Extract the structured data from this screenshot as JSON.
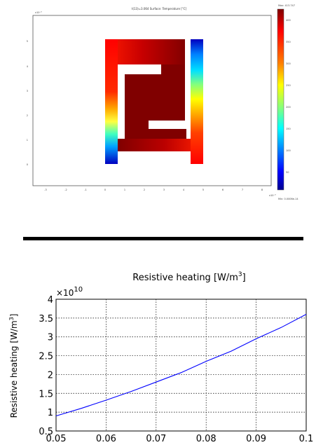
{
  "chart_data": [
    {
      "type": "heatmap",
      "title": "t(13)=3.064   Surface: Temperature [°C]",
      "colorbar": {
        "max_label": "Max: 413.747",
        "min_label": "Min: 0.0006e-14",
        "ticks": [
          "400",
          "350",
          "300",
          "250",
          "200",
          "150",
          "100",
          "50"
        ],
        "colors": [
          "#7f0000",
          "#ff0000",
          "#ffaa00",
          "#ffff00",
          "#80ff80",
          "#00ffff",
          "#0080ff",
          "#0000ff",
          "#00008f"
        ]
      },
      "x_ticks": [
        "-3",
        "-2",
        "-1",
        "0",
        "1",
        "2",
        "3",
        "4",
        "5",
        "6",
        "7",
        "8"
      ],
      "y_ticks": [
        "5",
        "4",
        "3",
        "2",
        "1",
        "0"
      ],
      "x_exponent": "x10⁻⁵",
      "y_exponent": "x10⁻⁵"
    },
    {
      "type": "line",
      "title": "Resistive heating [W/m",
      "title_sup": "3",
      "title_end": "]",
      "ylabel": "Resistive heating [W/m",
      "ylabel_sup": "3",
      "ylabel_end": "]",
      "xlabel": "",
      "y_multiplier": "×10",
      "y_multiplier_exp": "10",
      "xlim": [
        0.05,
        0.1
      ],
      "ylim": [
        0.5,
        4
      ],
      "x_ticks": [
        "0.05",
        "0.06",
        "0.07",
        "0.08",
        "0.09",
        "0.1"
      ],
      "y_ticks": [
        "0.5",
        "1",
        "1.5",
        "2",
        "2.5",
        "3",
        "3.5",
        "4"
      ],
      "grid": true,
      "line_color": "#0000ff",
      "series": [
        {
          "x": [
            0.05,
            0.055,
            0.06,
            0.065,
            0.07,
            0.075,
            0.08,
            0.085,
            0.09,
            0.095,
            0.1
          ],
          "y": [
            0.9,
            1.1,
            1.32,
            1.55,
            1.8,
            2.05,
            2.35,
            2.62,
            2.95,
            3.25,
            3.6
          ]
        }
      ]
    }
  ]
}
